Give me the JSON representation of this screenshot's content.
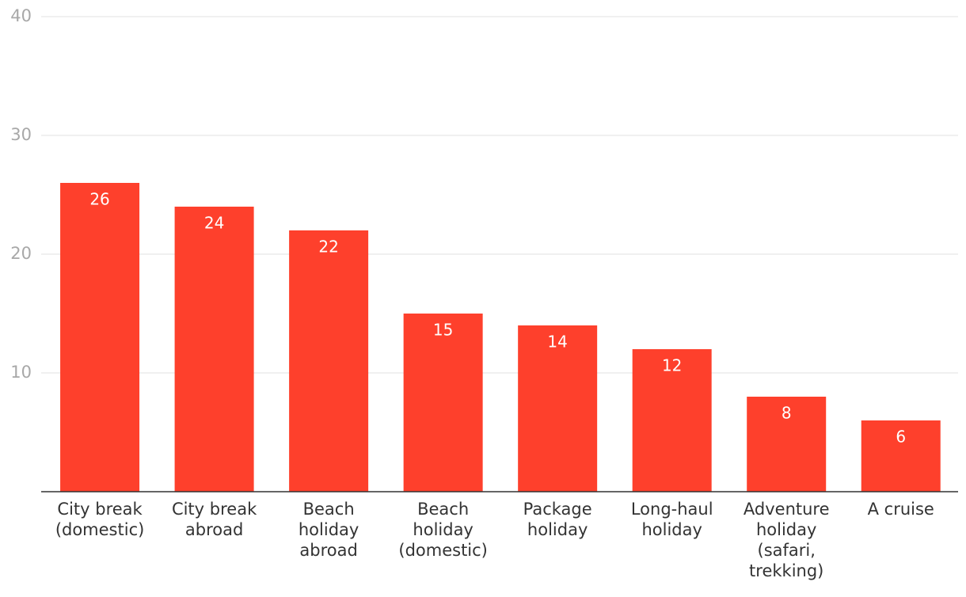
{
  "chart_data": {
    "type": "bar",
    "categories": [
      [
        "City break",
        "(domestic)"
      ],
      [
        "City break",
        "abroad"
      ],
      [
        "Beach",
        "holiday",
        "abroad"
      ],
      [
        "Beach",
        "holiday",
        "(domestic)"
      ],
      [
        "Package",
        "holiday"
      ],
      [
        "Long-haul",
        "holiday"
      ],
      [
        "Adventure",
        "holiday",
        "(safari,",
        "trekking)"
      ],
      [
        "A cruise"
      ]
    ],
    "values": [
      26,
      24,
      22,
      15,
      14,
      12,
      8,
      6
    ],
    "color": "#fe402c",
    "ylim": [
      0,
      40
    ],
    "yticks": [
      10,
      20,
      30,
      40
    ],
    "grid": true
  }
}
